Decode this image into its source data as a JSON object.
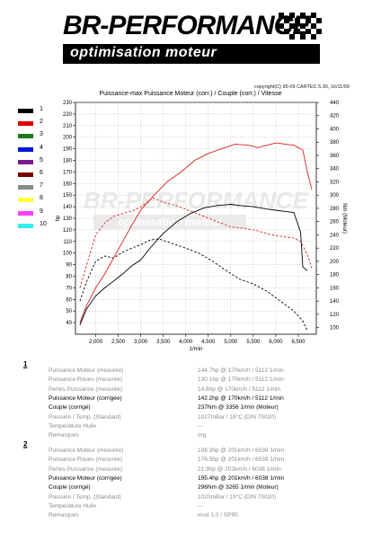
{
  "header": {
    "brand": "BR-PERFORMANCE",
    "tagline": "optimisation moteur",
    "copyright": "copyright(C) 95-09 CARTEC 5.30, 16/11/09"
  },
  "colors": {
    "run1": "#000000",
    "run2": "#d82020",
    "legend": [
      "#000000",
      "#e00000",
      "#1a7a1a",
      "#0018d8",
      "#7a1a90",
      "#7a0000",
      "#8a8a8a",
      "#ffff40",
      "#ff40ff",
      "#30f0f0"
    ]
  },
  "legend": {
    "items": [
      "1",
      "2",
      "3",
      "4",
      "5",
      "6",
      "7",
      "8",
      "9",
      "10"
    ]
  },
  "chart_data": {
    "type": "line",
    "title": "Puissance-max Puissance Moteur (corr.) / Couple (corr.) / Vitesse",
    "xlabel": "1/min",
    "ylabel_left": "hp",
    "ylabel_right": "Nm (Moteur)",
    "xlim": [
      1550,
      6900
    ],
    "ylim_left": [
      30,
      230
    ],
    "ylim_right": [
      90,
      440
    ],
    "x_ticks": [
      "2,000",
      "2,500",
      "3,000",
      "3,500",
      "4,000",
      "4,500",
      "5,000",
      "5,500",
      "6,000",
      "6,500"
    ],
    "y_ticks_left": [
      "40",
      "50",
      "60",
      "70",
      "80",
      "90",
      "100",
      "110",
      "120",
      "130",
      "140",
      "150",
      "160",
      "170",
      "180",
      "190",
      "200",
      "210",
      "220",
      "230"
    ],
    "y_ticks_right": [
      "100",
      "120",
      "140",
      "160",
      "180",
      "200",
      "220",
      "240",
      "260",
      "280",
      "300",
      "320",
      "340",
      "360",
      "380",
      "400",
      "420",
      "440"
    ],
    "grid": true,
    "series": [
      {
        "name": "1",
        "measure": "Puissance Moteur (corr.)",
        "axis": "left",
        "style": "solid",
        "x": [
          1650,
          1800,
          2000,
          2200,
          2400,
          2600,
          2800,
          3000,
          3200,
          3500,
          3800,
          4100,
          4400,
          4700,
          5000,
          5200,
          5500,
          5800,
          6000,
          6200,
          6400,
          6550,
          6600,
          6700
        ],
        "y": [
          38,
          52,
          63,
          70,
          76,
          82,
          89,
          94,
          104,
          117,
          127,
          134,
          139,
          141,
          142,
          141,
          140,
          138,
          137,
          136,
          135,
          118,
          88,
          85
        ]
      },
      {
        "name": "1",
        "measure": "Couple (corr.)",
        "axis": "right",
        "style": "dashed",
        "x": [
          1650,
          1800,
          2000,
          2200,
          2400,
          2600,
          2800,
          3000,
          3200,
          3400,
          3700,
          4000,
          4300,
          4600,
          4900,
          5200,
          5500,
          5800,
          6100,
          6400,
          6600,
          6700
        ],
        "y": [
          140,
          170,
          200,
          208,
          205,
          214,
          220,
          225,
          232,
          234,
          227,
          220,
          212,
          200,
          186,
          173,
          166,
          155,
          140,
          125,
          110,
          95
        ]
      },
      {
        "name": "2",
        "measure": "Puissance Moteur (corr.)",
        "axis": "left",
        "style": "solid",
        "x": [
          1650,
          1800,
          2000,
          2200,
          2400,
          2600,
          2800,
          3000,
          3300,
          3600,
          3900,
          4200,
          4500,
          4800,
          5100,
          5400,
          5600,
          5800,
          6000,
          6038,
          6200,
          6400,
          6600,
          6700,
          6800
        ],
        "y": [
          40,
          55,
          70,
          82,
          96,
          110,
          124,
          137,
          150,
          162,
          170,
          180,
          186,
          190,
          194,
          193,
          191,
          193,
          195,
          195,
          194,
          193,
          189,
          170,
          155
        ]
      },
      {
        "name": "2",
        "measure": "Couple (corr.)",
        "axis": "right",
        "style": "dashed",
        "x": [
          1650,
          1800,
          2000,
          2200,
          2400,
          2600,
          2800,
          3000,
          3265,
          3500,
          3800,
          4100,
          4400,
          4700,
          5000,
          5300,
          5600,
          5900,
          6200,
          6400,
          6550,
          6700,
          6800
        ],
        "y": [
          160,
          195,
          240,
          258,
          268,
          272,
          276,
          282,
          296,
          289,
          284,
          276,
          268,
          260,
          252,
          250,
          246,
          240,
          237,
          235,
          230,
          210,
          190
        ]
      }
    ]
  },
  "results": [
    {
      "index": "1",
      "rows": [
        {
          "label": "Puissance Moteur (mesurée)",
          "value": "144.7hp @ 170km/h / 5112 1/min",
          "em": false
        },
        {
          "label": "Puissance Roues (mesurée)",
          "value": "130.1hp @ 170km/h / 5112 1/min",
          "em": false
        },
        {
          "label": "Pertes Puissance (mesurée)",
          "value": "14.6hp @ 170km/h / 5112 1/min",
          "em": false
        },
        {
          "label": "Puissance Moteur (corrigée)",
          "value": "142.2hp @ 170km/h / 5112 1/min",
          "em": true
        },
        {
          "label": "Couple (corrigé)",
          "value": "237Nm @ 3356 1/min (Moteur)",
          "em": true
        },
        {
          "label": "Pression / Temp. (Standard)",
          "value": "1027mBar / 18°C (DIN 70020)",
          "em": false
        },
        {
          "label": "Température Huile",
          "value": "---",
          "em": false
        },
        {
          "label": "Remarques",
          "value": "org",
          "em": false
        }
      ]
    },
    {
      "index": "2",
      "rows": [
        {
          "label": "Puissance Moteur (mesurée)",
          "value": "198.3hp @ 201km/h / 6038 1/min",
          "em": false
        },
        {
          "label": "Puissance Roues (mesurée)",
          "value": "176.5hp @ 201km/h / 6038 1/min",
          "em": false
        },
        {
          "label": "Pertes Puissance (mesurée)",
          "value": "21.9hp @ 201km/h / 6038 1/min",
          "em": false
        },
        {
          "label": "Puissance Moteur (corrigée)",
          "value": "195.4hp @ 201km/h / 6038 1/min",
          "em": true
        },
        {
          "label": "Couple (corrigé)",
          "value": "296Nm @ 3265 1/min (Moteur)",
          "em": true
        },
        {
          "label": "Pression / Temp. (Standard)",
          "value": "1020mBar / 19°C (DIN 70020)",
          "em": false
        },
        {
          "label": "Température Huile",
          "value": "---",
          "em": false
        },
        {
          "label": "Remarques",
          "value": "mod 1.0 / SP95",
          "em": false
        }
      ]
    }
  ]
}
